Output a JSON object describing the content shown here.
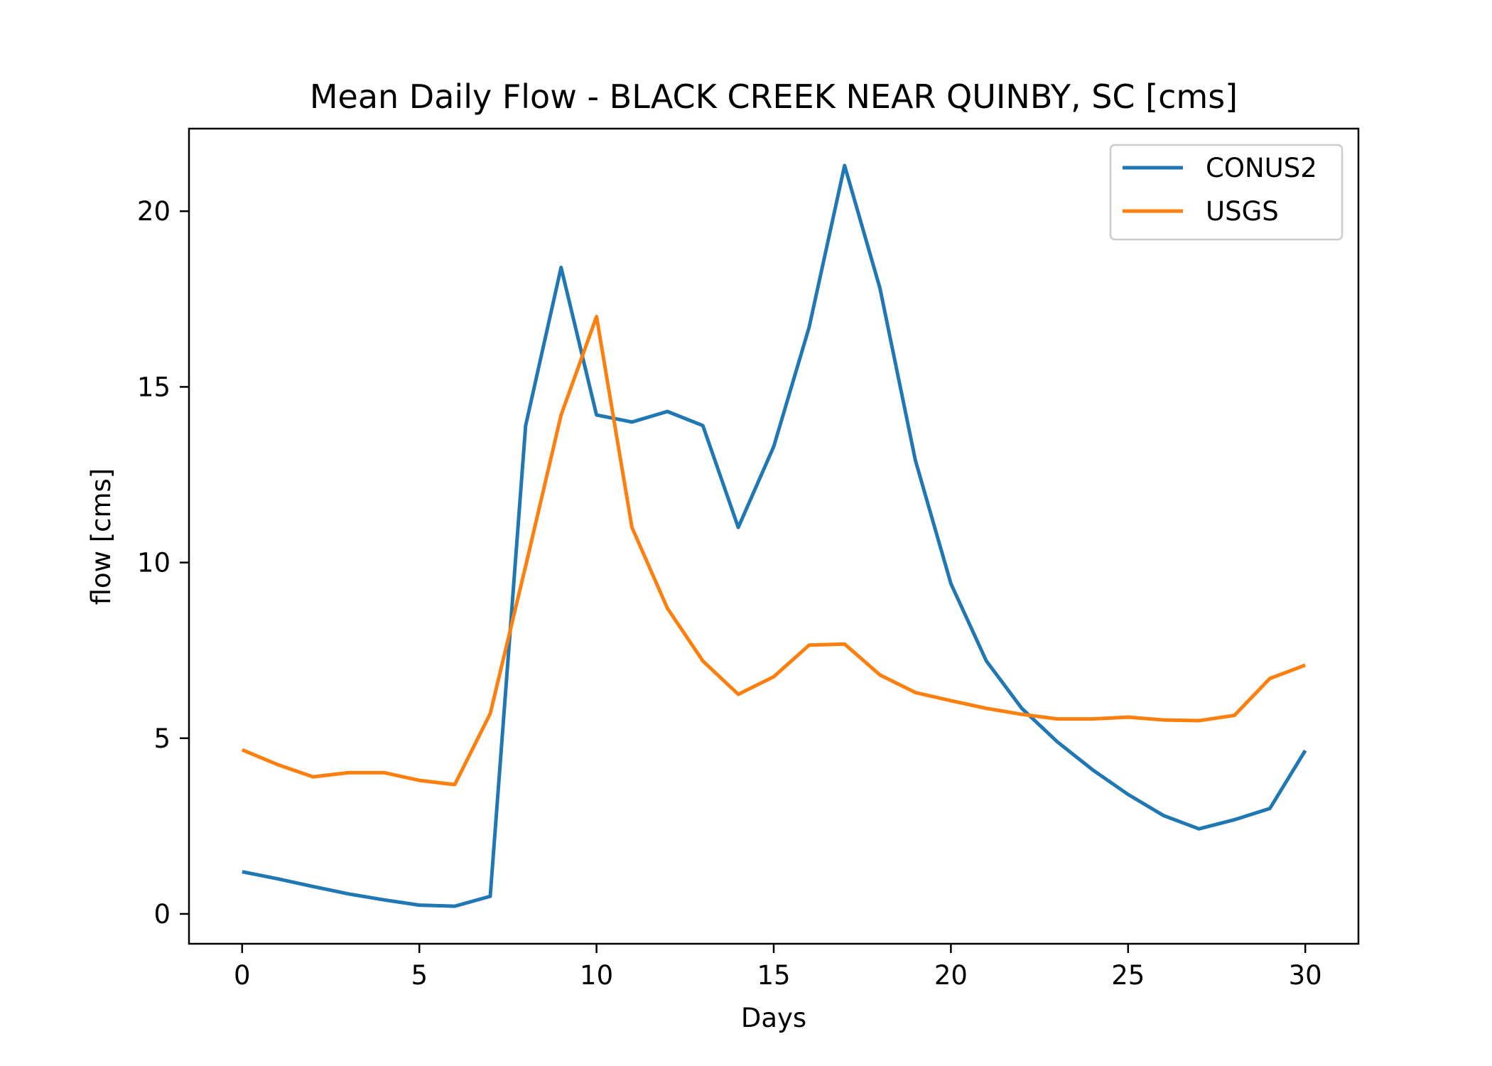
{
  "chart_data": {
    "type": "line",
    "title": "Mean Daily Flow - BLACK CREEK NEAR QUINBY, SC [cms]",
    "xlabel": "Days",
    "ylabel": "flow [cms]",
    "xlim": [
      -1.5,
      31.5
    ],
    "ylim": [
      -0.85,
      22.35
    ],
    "xticks": [
      0,
      5,
      10,
      15,
      20,
      25,
      30
    ],
    "yticks": [
      0,
      5,
      10,
      15,
      20
    ],
    "grid": false,
    "legend_position": "top-right",
    "x": [
      0,
      1,
      2,
      3,
      4,
      5,
      6,
      7,
      8,
      9,
      10,
      11,
      12,
      13,
      14,
      15,
      16,
      17,
      18,
      19,
      20,
      21,
      22,
      23,
      24,
      25,
      26,
      27,
      28,
      29,
      30
    ],
    "series": [
      {
        "name": "CONUS2",
        "color": "#1f77b4",
        "values": [
          1.2,
          1.0,
          0.78,
          0.57,
          0.4,
          0.25,
          0.22,
          0.5,
          13.9,
          18.4,
          14.2,
          14.0,
          14.3,
          13.9,
          11.0,
          13.3,
          16.7,
          21.3,
          17.8,
          12.9,
          9.4,
          7.2,
          5.85,
          4.9,
          4.1,
          3.4,
          2.8,
          2.42,
          2.68,
          3.0,
          4.65
        ]
      },
      {
        "name": "USGS",
        "color": "#ff7f0e",
        "values": [
          4.67,
          4.25,
          3.9,
          4.02,
          4.02,
          3.8,
          3.68,
          5.7,
          9.9,
          14.2,
          17.0,
          11.0,
          8.7,
          7.2,
          6.25,
          6.75,
          7.65,
          7.68,
          6.8,
          6.3,
          6.07,
          5.85,
          5.68,
          5.55,
          5.55,
          5.6,
          5.52,
          5.5,
          5.65,
          6.7,
          7.08
        ]
      }
    ]
  }
}
